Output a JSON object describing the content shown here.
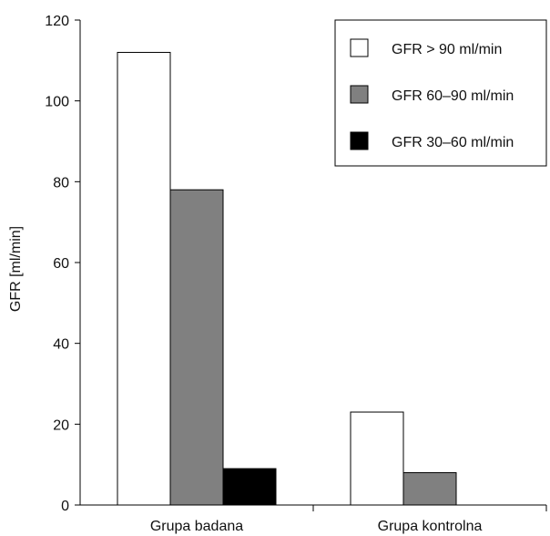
{
  "chart_data": {
    "type": "bar",
    "categories": [
      "Grupa badana",
      "Grupa kontrolna"
    ],
    "series": [
      {
        "name": "GFR > 90 ml/min",
        "values": [
          112,
          23
        ],
        "color": "#ffffff"
      },
      {
        "name": "GFR 60–90 ml/min",
        "values": [
          78,
          8
        ],
        "color": "#808080"
      },
      {
        "name": "GFR 30–60 ml/min",
        "values": [
          9,
          0
        ],
        "color": "#000000"
      }
    ],
    "title": "",
    "xlabel": "",
    "ylabel": "GFR [ml/min]",
    "ylim": [
      0,
      120
    ],
    "yticks": [
      0,
      20,
      40,
      60,
      80,
      100,
      120
    ],
    "grid": false,
    "legend_position": "top-right"
  }
}
